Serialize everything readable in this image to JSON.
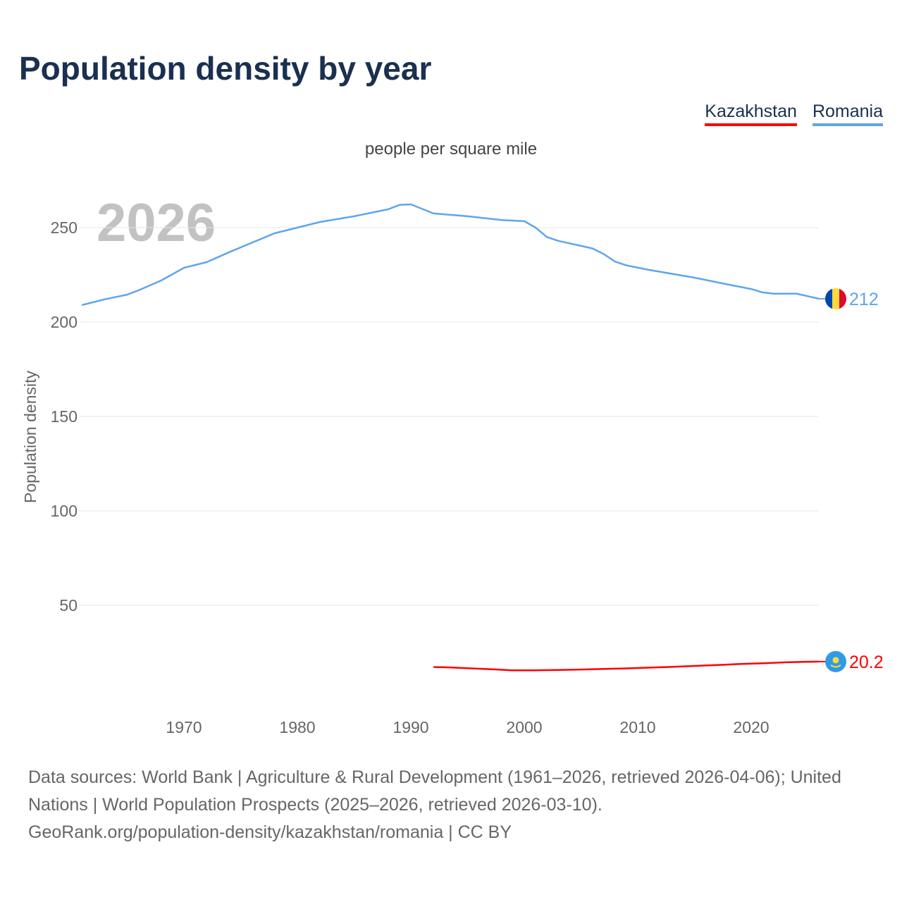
{
  "chart_data": {
    "type": "line",
    "title": "Population density by year",
    "subtitle": "people per square mile",
    "ylabel": "Population density",
    "xlabel": "",
    "year_watermark": "2026",
    "xlim": [
      1960,
      2026
    ],
    "ylim": [
      0,
      275
    ],
    "x_ticks": [
      1970,
      1980,
      1990,
      2000,
      2010,
      2020
    ],
    "y_ticks": [
      50,
      100,
      150,
      200,
      250
    ],
    "grid": true,
    "legend_position": "top-right",
    "series": [
      {
        "name": "Kazakhstan",
        "color": "#ff0000",
        "end_label": "20.2",
        "flag": "kazakhstan-flag",
        "x": [
          1992,
          1993,
          1995,
          1997,
          1999,
          2001,
          2003,
          2005,
          2007,
          2009,
          2011,
          2013,
          2015,
          2017,
          2019,
          2021,
          2023,
          2025,
          2026
        ],
        "values": [
          17.3,
          17.2,
          16.7,
          16.2,
          15.6,
          15.6,
          15.8,
          16.0,
          16.3,
          16.6,
          17.0,
          17.4,
          17.9,
          18.4,
          18.9,
          19.3,
          19.8,
          20.1,
          20.2
        ]
      },
      {
        "name": "Romania",
        "color": "#5ea6ec",
        "end_label": "212",
        "flag": "romania-flag",
        "x": [
          1961,
          1963,
          1965,
          1966,
          1968,
          1970,
          1972,
          1974,
          1976,
          1978,
          1980,
          1982,
          1985,
          1988,
          1989,
          1990,
          1992,
          1995,
          1998,
          2000,
          2001,
          2002,
          2003,
          2006,
          2007,
          2008,
          2009,
          2011,
          2015,
          2018,
          2020,
          2021,
          2022,
          2024,
          2026
        ],
        "values": [
          209,
          212,
          214.5,
          216.8,
          222,
          228.7,
          231.7,
          237,
          242,
          247,
          250,
          253,
          256,
          259.7,
          262,
          262.3,
          257.5,
          256,
          254,
          253.4,
          250,
          245,
          243,
          239,
          236,
          232,
          230,
          227.6,
          223.5,
          219.8,
          217.5,
          215.7,
          215,
          215,
          212.3
        ]
      }
    ]
  },
  "source": {
    "line1": "Data sources: World Bank | Agriculture & Rural Development (1961–2026, retrieved 2026-04-06); United Nations | World Population Prospects (2025–2026, retrieved 2026-03-10).",
    "line2": "GeoRank.org/population-density/kazakhstan/romania | CC BY"
  }
}
